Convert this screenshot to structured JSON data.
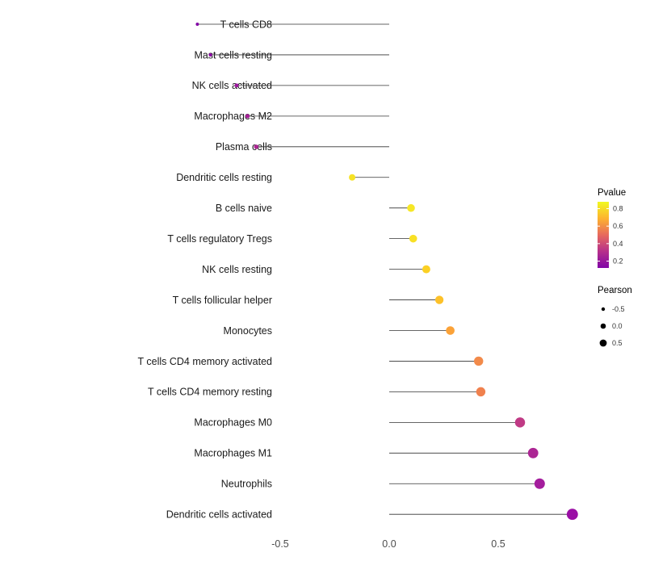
{
  "chart_data": {
    "type": "lollipop",
    "title": "",
    "xlabel": "",
    "ylabel": "",
    "xlim": [
      -1.0,
      1.0
    ],
    "grid": false,
    "stem_anchor": 0,
    "x_ticks": [
      {
        "value": -0.5,
        "label": "-0.5"
      },
      {
        "value": 0.0,
        "label": "0.0"
      },
      {
        "value": 0.5,
        "label": "0.5"
      }
    ],
    "points": [
      {
        "label": "T cells CD8",
        "pearson": -0.88,
        "pvalue": 0.1,
        "color": "#8306A6"
      },
      {
        "label": "Mast cells resting",
        "pearson": -0.82,
        "pvalue": 0.13,
        "color": "#8C09A5"
      },
      {
        "label": "NK cells activated",
        "pearson": -0.7,
        "pvalue": 0.2,
        "color": "#9C179E"
      },
      {
        "label": "Macrophages M2",
        "pearson": -0.65,
        "pvalue": 0.24,
        "color": "#A62098"
      },
      {
        "label": "Plasma cells",
        "pearson": -0.61,
        "pvalue": 0.27,
        "color": "#AC2694"
      },
      {
        "label": "Dendritic cells resting",
        "pearson": -0.17,
        "pvalue": 0.78,
        "color": "#F6E226"
      },
      {
        "label": "B cells naive",
        "pearson": 0.1,
        "pvalue": 0.8,
        "color": "#F6E726"
      },
      {
        "label": "T cells regulatory  Tregs",
        "pearson": 0.11,
        "pvalue": 0.78,
        "color": "#F8E025"
      },
      {
        "label": "NK cells resting",
        "pearson": 0.17,
        "pvalue": 0.7,
        "color": "#FBD024"
      },
      {
        "label": "T cells follicular helper",
        "pearson": 0.23,
        "pvalue": 0.64,
        "color": "#FDC129"
      },
      {
        "label": "Monocytes",
        "pearson": 0.28,
        "pvalue": 0.57,
        "color": "#FBA238"
      },
      {
        "label": "T cells CD4 memory activated",
        "pearson": 0.41,
        "pvalue": 0.49,
        "color": "#F28A4A"
      },
      {
        "label": "T cells CD4 memory resting",
        "pearson": 0.42,
        "pvalue": 0.47,
        "color": "#F0814E"
      },
      {
        "label": "Macrophages M0",
        "pearson": 0.6,
        "pvalue": 0.3,
        "color": "#C03A85"
      },
      {
        "label": "Macrophages M1",
        "pearson": 0.66,
        "pvalue": 0.24,
        "color": "#AC2694"
      },
      {
        "label": "Neutrophils",
        "pearson": 0.69,
        "pvalue": 0.21,
        "color": "#A41D9D"
      },
      {
        "label": "Dendritic cells activated",
        "pearson": 0.84,
        "pvalue": 0.15,
        "color": "#9A0FA5"
      }
    ],
    "legend_pvalue": {
      "title": "Pvalue",
      "ticks": [
        "0.8",
        "0.6",
        "0.4",
        "0.2"
      ],
      "gradient": [
        "#F0F921",
        "#FDB32F",
        "#E7695D",
        "#B6308B",
        "#8006A7"
      ]
    },
    "legend_pearson": {
      "title": "Pearson",
      "entries": [
        {
          "label": "-0.5",
          "r": 2.2
        },
        {
          "label": "0.0",
          "r": 3.3
        },
        {
          "label": "0.5",
          "r": 4.4
        }
      ]
    },
    "colors": {
      "stem": "#333333",
      "axis_text": "#4D4D4D",
      "label_text": "#1A1A1A",
      "legend_title": "#000000",
      "legend_text": "#333333",
      "background": "#FFFFFF"
    }
  }
}
